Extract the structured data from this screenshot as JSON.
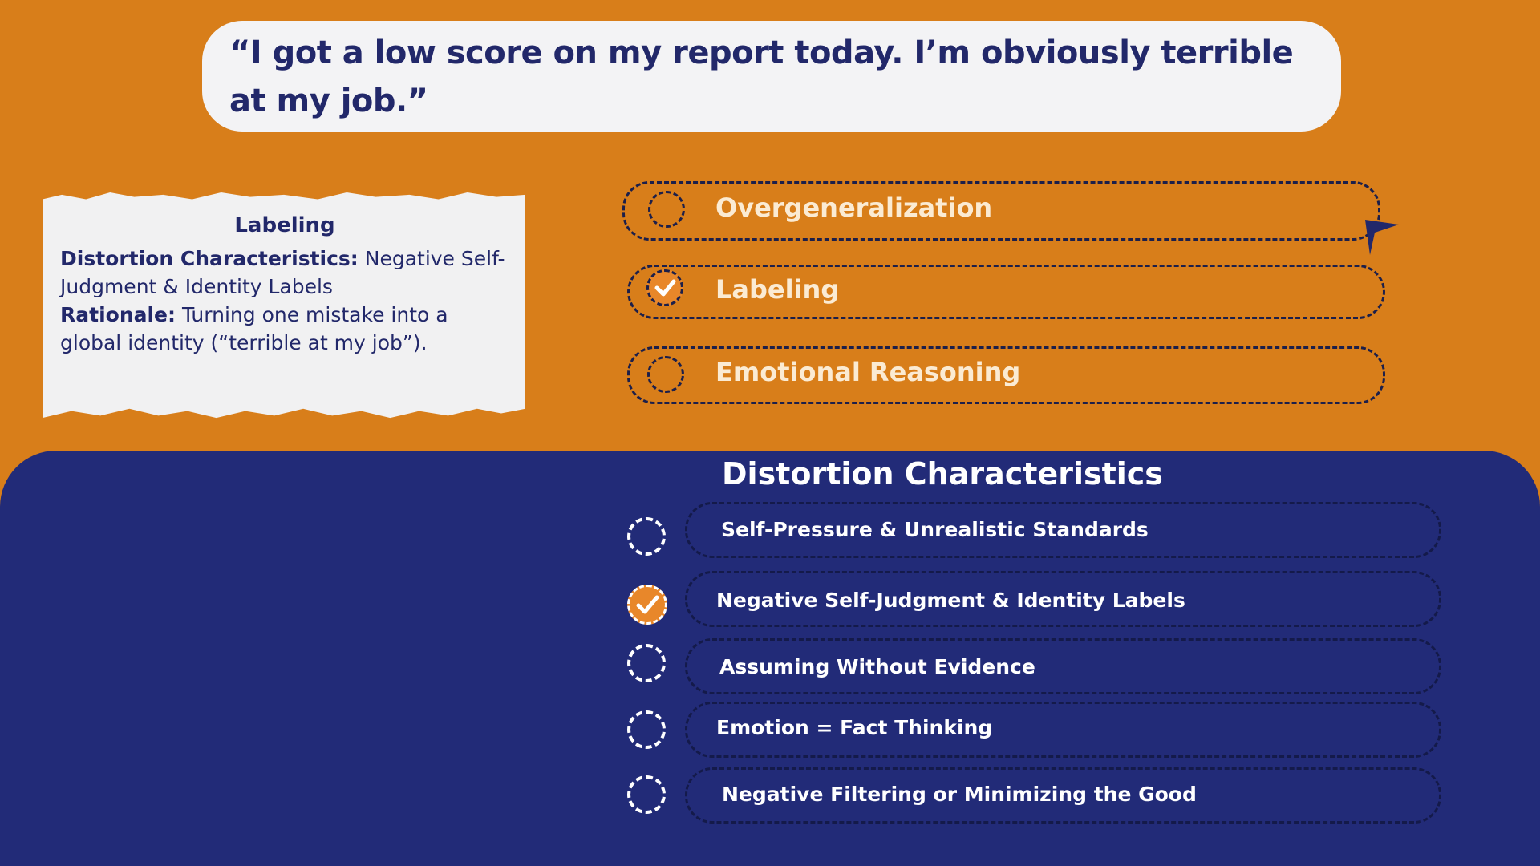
{
  "colors": {
    "orange_bg": "#D87E1A",
    "navy_bg": "#222B78",
    "text_navy": "#22286A",
    "check_orange": "#E8872A",
    "option_text": "#FBEBD3"
  },
  "quote": {
    "text": "“I got a low score on my report today. I’m obviously terrible at my job.”"
  },
  "note": {
    "title": "Labeling",
    "characteristics_label": "Distortion Characteristics:",
    "characteristics_value": " Negative Self-Judgment & Identity Labels",
    "rationale_label": "Rationale:",
    "rationale_value": " Turning one mistake into a global identity (“terrible at my job”)."
  },
  "options": [
    {
      "label": "Overgeneralization",
      "checked": false
    },
    {
      "label": "Labeling",
      "checked": true
    },
    {
      "label": "Emotional Reasoning",
      "checked": false
    }
  ],
  "characteristics": {
    "title": "Distortion Characteristics",
    "items": [
      {
        "label": "Self-Pressure & Unrealistic Standards",
        "checked": false
      },
      {
        "label": "Negative Self-Judgment & Identity Labels",
        "checked": true
      },
      {
        "label": "Assuming Without Evidence",
        "checked": false
      },
      {
        "label": "Emotion = Fact Thinking",
        "checked": false
      },
      {
        "label": "Negative Filtering or Minimizing the Good",
        "checked": false
      }
    ]
  },
  "icons": {
    "check": "checkmark-icon",
    "cursor": "pointer-cursor-icon"
  }
}
